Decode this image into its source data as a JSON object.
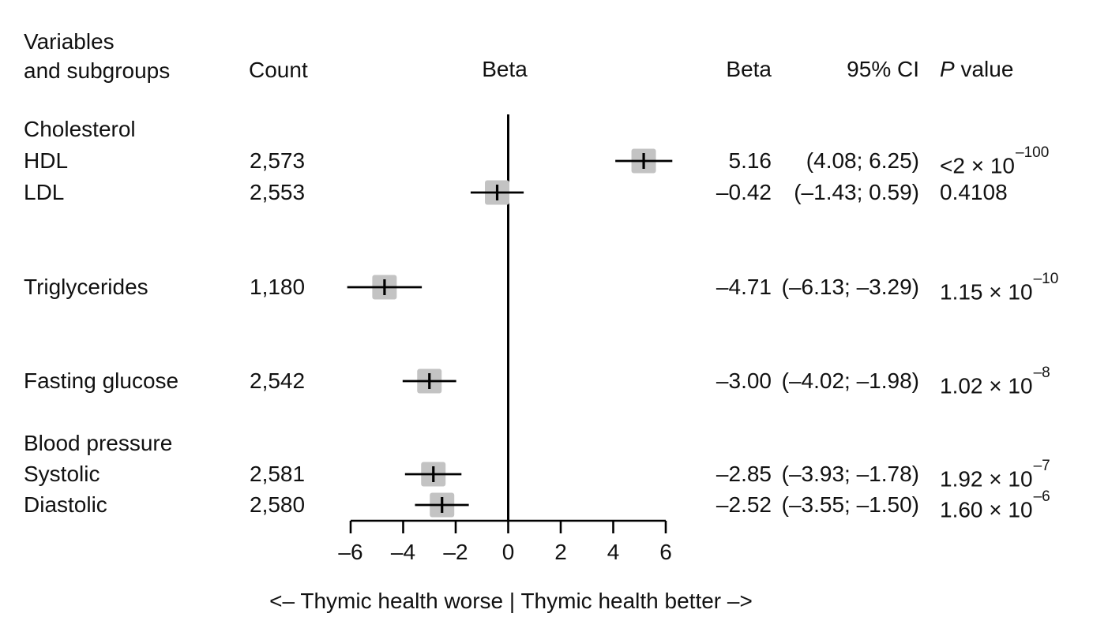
{
  "chart_data": {
    "type": "forest",
    "title": "",
    "xlabel": "",
    "x_axis": {
      "range": [
        -6,
        6
      ],
      "ticks": [
        -6,
        -4,
        -2,
        0,
        2,
        4,
        6
      ],
      "zero_line": 0
    },
    "marker_color": "#c3c3c3",
    "line_color": "#000000",
    "columns": {
      "variables_line1": "Variables",
      "variables_line2": "and subgroups",
      "count": "Count",
      "beta_plot": "Beta",
      "beta": "Beta",
      "ci": "95% CI",
      "p_italic": "P",
      "p_rest": " value"
    },
    "rows": [
      {
        "kind": "group",
        "label": "Cholesterol"
      },
      {
        "kind": "data",
        "label": "HDL",
        "count": "2,573",
        "beta": 5.16,
        "ci_low": 4.08,
        "ci_high": 6.25,
        "beta_text": "5.16",
        "ci_text": "(4.08; 6.25)",
        "p_mantissa": "<2 × 10",
        "p_exponent": "–100"
      },
      {
        "kind": "data",
        "label": "LDL",
        "count": "2,553",
        "beta": -0.42,
        "ci_low": -1.43,
        "ci_high": 0.59,
        "beta_text": "–0.42",
        "ci_text": "(–1.43; 0.59)",
        "p_mantissa": "0.4108",
        "p_exponent": ""
      },
      {
        "kind": "data",
        "label": "Triglycerides",
        "count": "1,180",
        "beta": -4.71,
        "ci_low": -6.13,
        "ci_high": -3.29,
        "beta_text": "–4.71",
        "ci_text": "(–6.13; –3.29)",
        "p_mantissa": "1.15 × 10",
        "p_exponent": "–10"
      },
      {
        "kind": "data",
        "label": "Fasting glucose",
        "count": "2,542",
        "beta": -3.0,
        "ci_low": -4.02,
        "ci_high": -1.98,
        "beta_text": "–3.00",
        "ci_text": "(–4.02; –1.98)",
        "p_mantissa": "1.02 × 10",
        "p_exponent": "–8"
      },
      {
        "kind": "group",
        "label": "Blood pressure"
      },
      {
        "kind": "data",
        "label": "Systolic",
        "count": "2,581",
        "beta": -2.85,
        "ci_low": -3.93,
        "ci_high": -1.78,
        "beta_text": "–2.85",
        "ci_text": "(–3.93; –1.78)",
        "p_mantissa": "1.92 × 10",
        "p_exponent": "–7"
      },
      {
        "kind": "data",
        "label": "Diastolic",
        "count": "2,580",
        "beta": -2.52,
        "ci_low": -3.55,
        "ci_high": -1.5,
        "beta_text": "–2.52",
        "ci_text": "(–3.55; –1.50)",
        "p_mantissa": "1.60 × 10",
        "p_exponent": "–6"
      }
    ],
    "caption": "<– Thymic health worse | Thymic health better –>"
  }
}
